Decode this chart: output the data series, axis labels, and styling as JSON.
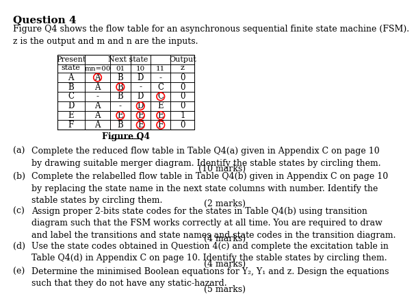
{
  "title": "Question 4",
  "intro": "Figure Q4 shows the flow table for an asynchronous sequential finite state machine (FSM).\nz is the output and m and n are the inputs.",
  "fig_label": "Figure Q4",
  "table": {
    "rows": [
      [
        "A",
        "A",
        "B",
        "D",
        "-",
        "0"
      ],
      [
        "B",
        "A",
        "B",
        "-",
        "C",
        "0"
      ],
      [
        "C",
        "-",
        "B",
        "D",
        "C",
        "0"
      ],
      [
        "D",
        "A",
        "-",
        "D",
        "E",
        "0"
      ],
      [
        "E",
        "A",
        "E",
        "E",
        "E",
        "1"
      ],
      [
        "F",
        "A",
        "B",
        "E",
        "F",
        "0"
      ]
    ],
    "circled": [
      [
        0,
        1
      ],
      [
        1,
        2
      ],
      [
        2,
        4
      ],
      [
        3,
        3
      ],
      [
        4,
        2
      ],
      [
        4,
        3
      ],
      [
        4,
        4
      ],
      [
        5,
        3
      ],
      [
        5,
        4
      ]
    ]
  },
  "questions": [
    {
      "label": "(a)",
      "text": "Complete the reduced flow table in Table Q4(a) given in Appendix C on page 10\nby drawing suitable merger diagram. Identify the stable states by circling them.",
      "marks": "(10 marks)",
      "nlines": 2
    },
    {
      "label": "(b)",
      "text": "Complete the relabelled flow table in Table Q4(b) given in Appendix C on page 10\nby replacing the state name in the next state columns with number. Identify the\nstable states by circling them.",
      "marks": "(2 marks)",
      "nlines": 3
    },
    {
      "label": "(c)",
      "text": "Assign proper 2-bits state codes for the states in Table Q4(b) using transition\ndiagram such that the FSM works correctly at all time. You are required to draw\nand label the transitions and state names and state codes in the transition diagram.",
      "marks": "(4 marks)",
      "nlines": 3
    },
    {
      "label": "(d)",
      "text": "Use the state codes obtained in Question 4(c) and complete the excitation table in\nTable Q4(d) in Appendix C on page 10. Identify the stable states by circling them.",
      "marks": "(4 marks)",
      "nlines": 2
    },
    {
      "label": "(e)",
      "text": "Determine the minimised Boolean equations for Y₂, Y₁ and z. Design the equations\nsuch that they do not have any static-hazard.",
      "marks": "(5 marks)",
      "nlines": 2
    }
  ],
  "bg_color": "#ffffff",
  "text_color": "#000000",
  "circle_color": "#ff0000",
  "font_size_title": 11,
  "font_size_body": 9,
  "font_size_table": 8.5
}
